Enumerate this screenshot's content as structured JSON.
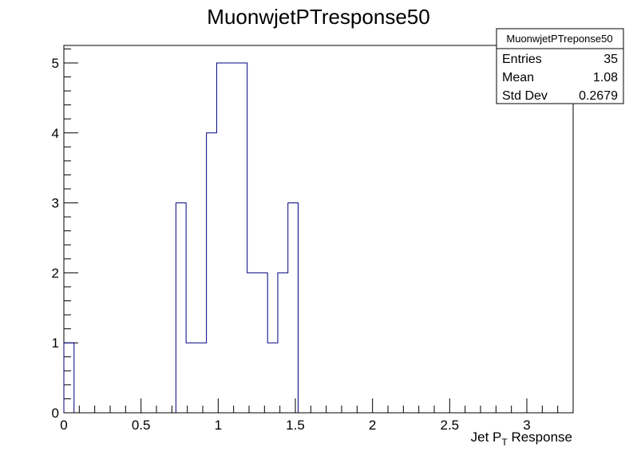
{
  "chart_data": {
    "type": "bar",
    "title": "MuonwjetPTresponse50",
    "xlabel": "Jet P",
    "xlabel_sub": "T",
    "xlabel_suffix": " Response",
    "ylabel": "",
    "xlim": [
      0,
      3.3
    ],
    "ylim": [
      0,
      5.25
    ],
    "x_ticks": [
      0,
      0.5,
      1,
      1.5,
      2,
      2.5,
      3
    ],
    "x_tick_labels": [
      "0",
      "0.5",
      "1",
      "1.5",
      "2",
      "2.5",
      "3"
    ],
    "y_ticks": [
      0,
      1,
      2,
      3,
      4,
      5
    ],
    "y_tick_labels": [
      "0",
      "1",
      "2",
      "3",
      "4",
      "5"
    ],
    "bin_width": 0.066,
    "bins": [
      {
        "x0": 0.0,
        "value": 1
      },
      {
        "x0": 0.726,
        "value": 3
      },
      {
        "x0": 0.792,
        "value": 1
      },
      {
        "x0": 0.858,
        "value": 1
      },
      {
        "x0": 0.924,
        "value": 4
      },
      {
        "x0": 0.99,
        "value": 5
      },
      {
        "x0": 1.056,
        "value": 5
      },
      {
        "x0": 1.122,
        "value": 5
      },
      {
        "x0": 1.188,
        "value": 2
      },
      {
        "x0": 1.254,
        "value": 2
      },
      {
        "x0": 1.32,
        "value": 1
      },
      {
        "x0": 1.386,
        "value": 2
      },
      {
        "x0": 1.452,
        "value": 3
      }
    ],
    "line_color": "#000080",
    "grid": false
  },
  "stats": {
    "title": "MuonwjetPTreponse50",
    "rows": [
      {
        "label": "Entries",
        "value": "35"
      },
      {
        "label": "Mean",
        "value": "1.08"
      },
      {
        "label": "Std Dev",
        "value": "0.2679"
      }
    ]
  }
}
